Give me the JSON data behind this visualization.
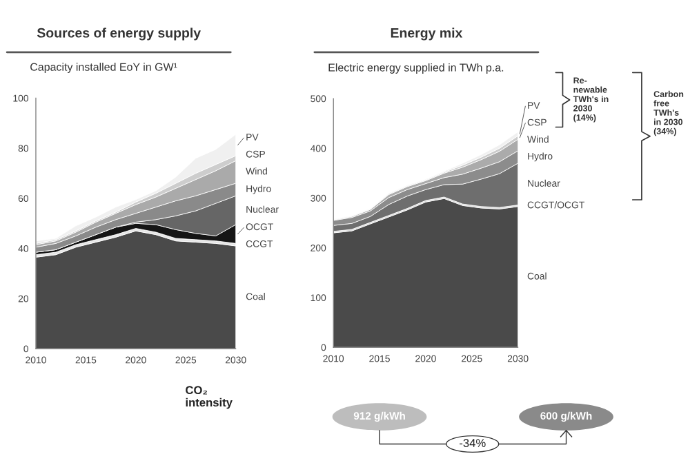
{
  "chart_data": [
    {
      "type": "area",
      "stacked": true,
      "title": "Sources of energy supply",
      "subtitle": "Capacity installed EoY in GW¹",
      "x": [
        2010,
        2012,
        2014,
        2016,
        2018,
        2020,
        2022,
        2024,
        2026,
        2028,
        2030
      ],
      "xlim": [
        2010,
        2030
      ],
      "xticks": [
        2010,
        2015,
        2020,
        2025,
        2030
      ],
      "ylim": [
        0,
        100
      ],
      "yticks": [
        0,
        20,
        40,
        60,
        80,
        100
      ],
      "grid": false,
      "legend": false,
      "series": [
        {
          "name": "Coal",
          "color": "#4a4a4a",
          "values": [
            36.5,
            37.5,
            40.5,
            42.5,
            44.5,
            47,
            45.5,
            43,
            42.5,
            42,
            41
          ]
        },
        {
          "name": "CCGT",
          "color": "#e6e6e6",
          "values": [
            1,
            1,
            1,
            1,
            1,
            1,
            1,
            1,
            1,
            1,
            1
          ]
        },
        {
          "name": "OCGT",
          "color": "#151515",
          "values": [
            1,
            1,
            1,
            2,
            3,
            2,
            3,
            3.5,
            2.5,
            2,
            7.5
          ]
        },
        {
          "name": "Nuclear",
          "color": "#666666",
          "values": [
            0,
            0,
            0,
            0,
            0,
            0.5,
            2,
            5.5,
            9,
            13,
            11.5
          ]
        },
        {
          "name": "Hydro",
          "color": "#8a8a8a",
          "values": [
            2,
            2.5,
            2.5,
            3,
            3,
            3.5,
            5,
            6,
            6,
            5.5,
            5
          ]
        },
        {
          "name": "Wind",
          "color": "#aaaaaa",
          "values": [
            1,
            1,
            1.5,
            2,
            2.5,
            3.5,
            4,
            5,
            6.5,
            7.5,
            9
          ]
        },
        {
          "name": "CSP",
          "color": "#cdcdcd",
          "values": [
            0.5,
            0.5,
            0.5,
            0.5,
            0.5,
            1,
            1.5,
            2,
            2.5,
            2.5,
            2
          ]
        },
        {
          "name": "PV",
          "color": "#f0f0f0",
          "values": [
            1,
            0.5,
            2,
            1.5,
            2,
            1,
            1,
            2.5,
            6,
            6,
            8.5
          ]
        }
      ]
    },
    {
      "type": "area",
      "stacked": true,
      "title": "Energy mix",
      "subtitle": "Electric energy supplied in TWh p.a.",
      "x": [
        2010,
        2012,
        2014,
        2016,
        2018,
        2020,
        2022,
        2024,
        2026,
        2028,
        2030
      ],
      "xlim": [
        2010,
        2030
      ],
      "xticks": [
        2010,
        2015,
        2020,
        2025,
        2030
      ],
      "ylim": [
        0,
        500
      ],
      "yticks": [
        0,
        100,
        200,
        300,
        400,
        500
      ],
      "grid": false,
      "legend": false,
      "series": [
        {
          "name": "Coal",
          "color": "#4a4a4a",
          "values": [
            230,
            234,
            248,
            262,
            276,
            292,
            299,
            285,
            280,
            278,
            283
          ]
        },
        {
          "name": "CCGT/OCGT",
          "color": "#d9d9d9",
          "values": [
            3,
            3,
            3,
            3,
            3,
            3,
            3,
            3,
            3,
            3,
            3
          ]
        },
        {
          "name": "Nuclear",
          "color": "#6e6e6e",
          "values": [
            12,
            12,
            12,
            22,
            25,
            22,
            25,
            40,
            55,
            68,
            84
          ]
        },
        {
          "name": "Hydro",
          "color": "#8c8c8c",
          "values": [
            10,
            12,
            11,
            14,
            13,
            12,
            14,
            20,
            22,
            24,
            25
          ]
        },
        {
          "name": "Wind",
          "color": "#ababab",
          "values": [
            1,
            2,
            3,
            6,
            6,
            6,
            9,
            14,
            17,
            21,
            23
          ]
        },
        {
          "name": "CSP",
          "color": "#cbcbcb",
          "values": [
            1,
            1,
            1,
            1.5,
            1.5,
            1.5,
            2,
            4,
            5,
            6,
            7
          ]
        },
        {
          "name": "PV",
          "color": "#f0f0f0",
          "values": [
            1,
            1,
            1,
            1.5,
            1.5,
            1.5,
            2,
            4,
            5,
            7,
            8
          ]
        }
      ],
      "annotations": [
        "Re-\nnewable\nTWh's in\n2030\n(14%)",
        "Carbon\nfree\nTWh's\nin 2030\n(34%)",
        "CO₂\nintensity",
        "912 g/kWh",
        "600 g/kWh",
        "-34%"
      ]
    }
  ]
}
